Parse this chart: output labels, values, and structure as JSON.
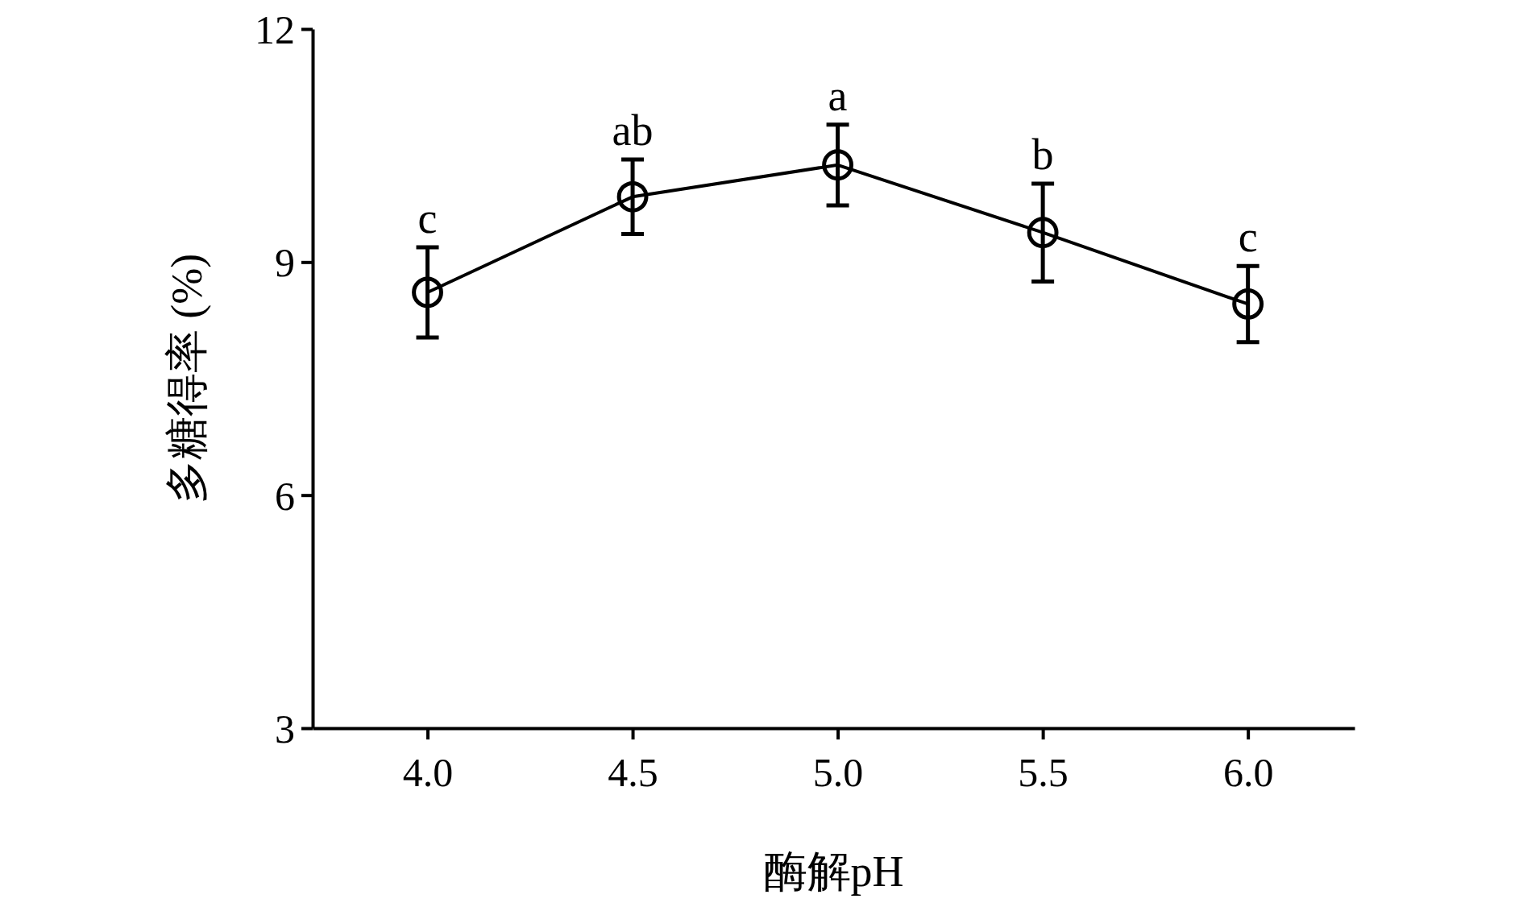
{
  "chart_data": {
    "type": "line",
    "xlabel": "酶解pH",
    "ylabel": "多糖得率 (%)",
    "x": [
      4.0,
      4.5,
      5.0,
      5.5,
      6.0
    ],
    "series": [
      {
        "color": "#000000",
        "values": [
          8.61,
          9.84,
          10.25,
          9.38,
          8.46
        ],
        "errors": [
          0.58,
          0.48,
          0.52,
          0.63,
          0.49
        ]
      }
    ],
    "xlim": [
      3.72,
      6.26
    ],
    "xticks": [
      {
        "value": 4,
        "label": "4.0"
      },
      {
        "value": 4.5,
        "label": "4.5"
      },
      {
        "value": 5,
        "label": "5.0"
      },
      {
        "value": 5.5,
        "label": "5.5"
      },
      {
        "value": 6,
        "label": "6.0"
      }
    ],
    "ylim": [
      3,
      12
    ],
    "yticks": [
      3,
      6,
      9,
      12
    ],
    "marker": "circle",
    "line_style": "solid",
    "grid": false,
    "annotations": [
      {
        "text": "c",
        "x": 4.0,
        "y": 8.61
      },
      {
        "text": "ab",
        "x": 4.5,
        "y": 9.84
      },
      {
        "text": "a",
        "x": 5.0,
        "y": 10.25
      },
      {
        "text": "b",
        "x": 5.5,
        "y": 9.38
      },
      {
        "text": "c",
        "x": 6.0,
        "y": 8.46
      }
    ]
  }
}
